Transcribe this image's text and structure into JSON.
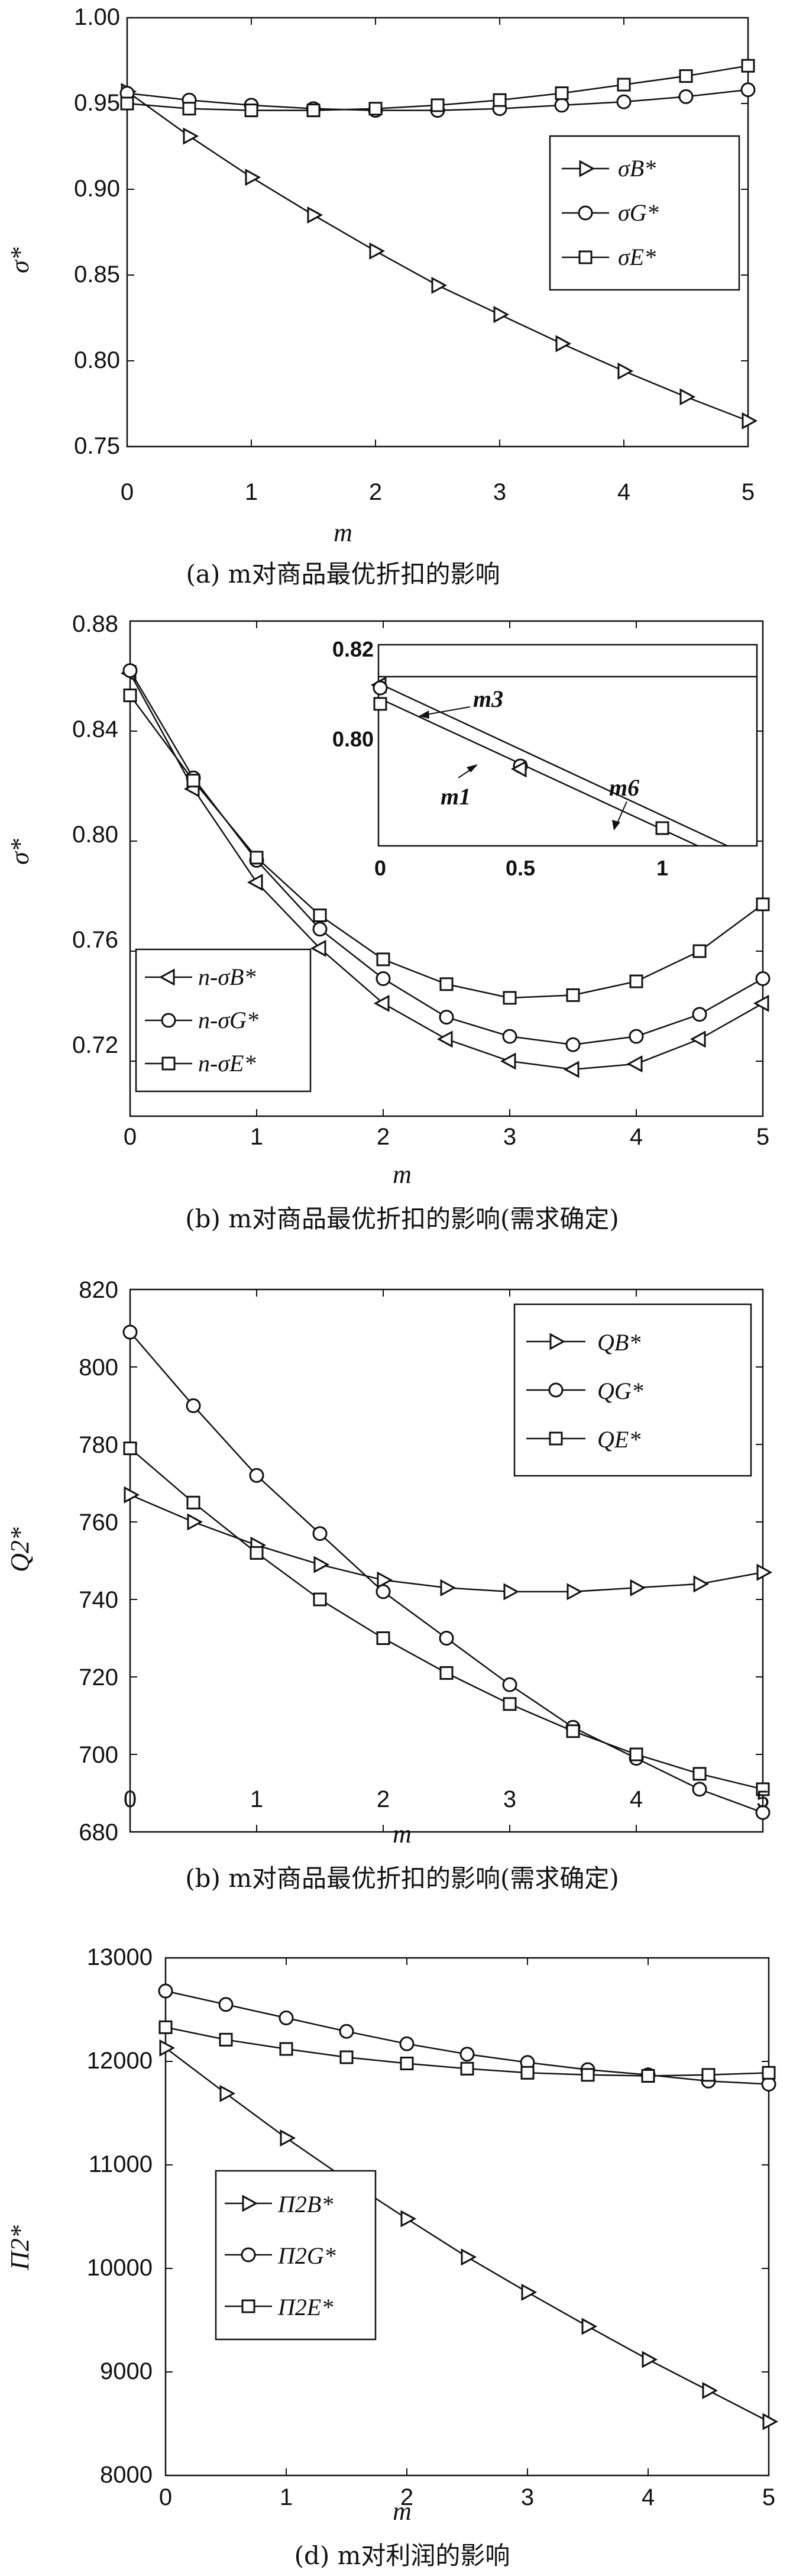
{
  "chart_data": [
    {
      "type": "line",
      "caption": "(a) m对商品最优折扣的影响",
      "xlabel": "m",
      "ylabel": "σ*",
      "x": [
        0,
        0.5,
        1,
        1.5,
        2,
        2.5,
        3,
        3.5,
        4,
        4.5,
        5
      ],
      "xlim": [
        0,
        5
      ],
      "ylim": [
        0.75,
        1.0
      ],
      "xticks": [
        "0",
        "1",
        "2",
        "3",
        "4",
        "5"
      ],
      "yticks": [
        "0.75",
        "0.80",
        "0.85",
        "0.90",
        "0.95",
        "1.00"
      ],
      "legend_position": "right",
      "series": [
        {
          "name": "σB*",
          "marker": "triangle-right",
          "values": [
            0.957,
            0.931,
            0.907,
            0.885,
            0.864,
            0.844,
            0.827,
            0.81,
            0.794,
            0.779,
            0.765
          ]
        },
        {
          "name": "σG*",
          "marker": "circle",
          "values": [
            0.956,
            0.952,
            0.949,
            0.947,
            0.946,
            0.946,
            0.947,
            0.949,
            0.951,
            0.954,
            0.958
          ]
        },
        {
          "name": "σE*",
          "marker": "square",
          "values": [
            0.95,
            0.947,
            0.946,
            0.946,
            0.947,
            0.949,
            0.952,
            0.956,
            0.961,
            0.966,
            0.972
          ]
        }
      ]
    },
    {
      "type": "line",
      "caption": "(b) m对商品最优折扣的影响(需求确定)",
      "xlabel": "m",
      "ylabel": "σ*",
      "x": [
        0,
        0.5,
        1,
        1.5,
        2,
        2.5,
        3,
        3.5,
        4,
        4.5,
        5
      ],
      "xlim": [
        0,
        5
      ],
      "ylim": [
        0.7,
        0.88
      ],
      "xticks": [
        "0",
        "1",
        "2",
        "3",
        "4",
        "5"
      ],
      "yticks": [
        "0.72",
        "0.76",
        "0.80",
        "0.84",
        "0.88"
      ],
      "legend_position": "bottom-left",
      "series": [
        {
          "name": "n-σB*",
          "marker": "triangle-left",
          "values": [
            0.861,
            0.819,
            0.785,
            0.761,
            0.741,
            0.728,
            0.72,
            0.717,
            0.719,
            0.728,
            0.741
          ]
        },
        {
          "name": "n-σG*",
          "marker": "circle",
          "values": [
            0.862,
            0.823,
            0.793,
            0.768,
            0.75,
            0.736,
            0.729,
            0.726,
            0.729,
            0.737,
            0.75
          ]
        },
        {
          "name": "n-σE*",
          "marker": "square",
          "values": [
            0.853,
            0.822,
            0.794,
            0.773,
            0.757,
            0.748,
            0.743,
            0.744,
            0.749,
            0.76,
            0.777
          ]
        }
      ],
      "inset": {
        "xlim": [
          0,
          1.2
        ],
        "ylim": [
          0.79,
          0.82
        ],
        "xticks": [
          "0",
          "0.5",
          "1"
        ],
        "yticks": [
          "0.80",
          "0.82"
        ],
        "annotations": [
          "m3",
          "m1",
          "m6"
        ]
      }
    },
    {
      "type": "line",
      "caption": "(b) m对商品最优折扣的影响(需求确定)",
      "xlabel": "m",
      "ylabel": "Q2*",
      "x": [
        0,
        0.5,
        1,
        1.5,
        2,
        2.5,
        3,
        3.5,
        4,
        4.5,
        5
      ],
      "xlim": [
        0,
        5
      ],
      "ylim": [
        680,
        820
      ],
      "xticks": [
        "0",
        "1",
        "2",
        "3",
        "4",
        "5"
      ],
      "yticks": [
        "680",
        "700",
        "720",
        "740",
        "760",
        "780",
        "800",
        "820"
      ],
      "legend_position": "top-right",
      "series": [
        {
          "name": "QB*",
          "marker": "triangle-right",
          "values": [
            767,
            760,
            754,
            749,
            745,
            743,
            742,
            742,
            743,
            744,
            747
          ]
        },
        {
          "name": "QG*",
          "marker": "circle",
          "values": [
            809,
            790,
            772,
            757,
            742,
            730,
            718,
            707,
            699,
            691,
            685
          ]
        },
        {
          "name": "QE*",
          "marker": "square",
          "values": [
            779,
            765,
            752,
            740,
            730,
            721,
            713,
            706,
            700,
            695,
            691
          ]
        }
      ]
    },
    {
      "type": "line",
      "caption": "(d) m对利润的影响",
      "xlabel": "m",
      "ylabel": "Π2*",
      "x": [
        0,
        0.5,
        1,
        1.5,
        2,
        2.5,
        3,
        3.5,
        4,
        4.5,
        5
      ],
      "xlim": [
        0,
        5
      ],
      "ylim": [
        8000,
        13000
      ],
      "xticks": [
        "0",
        "1",
        "2",
        "3",
        "4",
        "5"
      ],
      "yticks": [
        "8000",
        "9000",
        "10000",
        "11000",
        "12000",
        "13000"
      ],
      "legend_position": "left",
      "series": [
        {
          "name": "Π2B*",
          "marker": "triangle-right",
          "values": [
            12130,
            11690,
            11260,
            10860,
            10480,
            10110,
            9770,
            9440,
            9120,
            8820,
            8520
          ]
        },
        {
          "name": "Π2G*",
          "marker": "circle",
          "values": [
            12680,
            12550,
            12420,
            12290,
            12170,
            12070,
            11990,
            11920,
            11870,
            11810,
            11780
          ]
        },
        {
          "name": "Π2E*",
          "marker": "square",
          "values": [
            12330,
            12210,
            12120,
            12040,
            11980,
            11930,
            11890,
            11870,
            11860,
            11870,
            11890
          ]
        }
      ]
    }
  ]
}
